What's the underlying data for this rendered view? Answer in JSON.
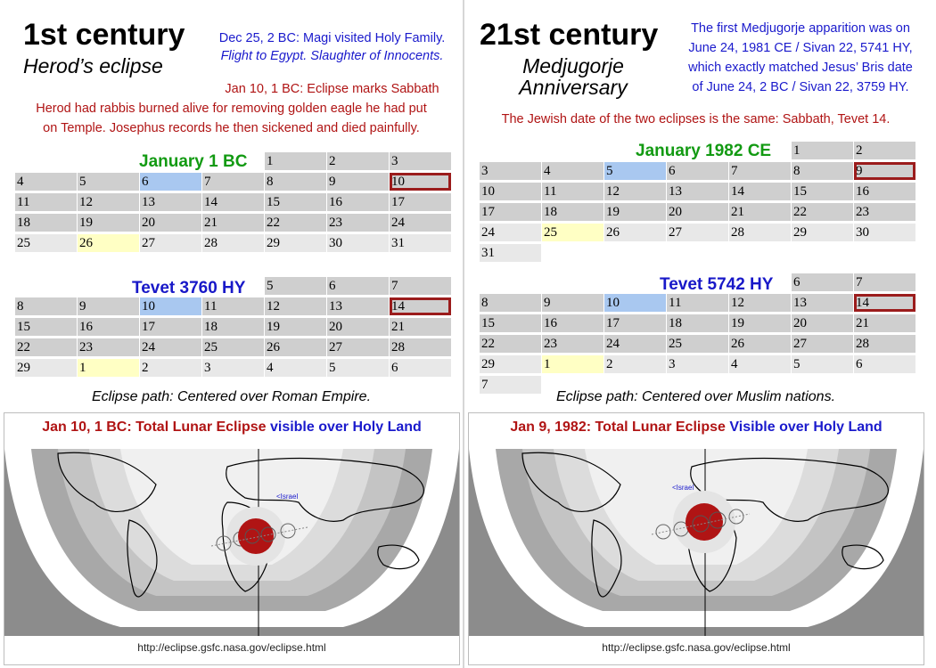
{
  "left": {
    "century": "1st century",
    "subtitle": "Herod’s eclipse",
    "note_blue_1": "Dec 25, 2 BC: Magi visited Holy Family.",
    "note_blue_2": "Flight to Egypt. Slaughter of Innocents.",
    "note_red_1": "Jan 10, 1 BC: Eclipse marks Sabbath",
    "note_red_2": "Herod had rabbis burned alive for removing golden eagle he had put",
    "note_red_3": "on Temple. Josephus records he then sickened and died painfully.",
    "cal1": {
      "title": "January 1 BC",
      "rows": [
        [
          "",
          "",
          "",
          "",
          "1",
          "2",
          "3"
        ],
        [
          "4",
          "5",
          "6",
          "7",
          "8",
          "9",
          "10"
        ],
        [
          "11",
          "12",
          "13",
          "14",
          "15",
          "16",
          "17"
        ],
        [
          "18",
          "19",
          "20",
          "21",
          "22",
          "23",
          "24"
        ],
        [
          "25",
          "26",
          "27",
          "28",
          "29",
          "30",
          "31"
        ]
      ]
    },
    "cal2": {
      "title": "Tevet 3760 HY",
      "rows": [
        [
          "",
          "",
          "",
          "",
          "5",
          "6",
          "7"
        ],
        [
          "8",
          "9",
          "10",
          "11",
          "12",
          "13",
          "14"
        ],
        [
          "15",
          "16",
          "17",
          "18",
          "19",
          "20",
          "21"
        ],
        [
          "22",
          "23",
          "24",
          "25",
          "26",
          "27",
          "28"
        ],
        [
          "29",
          "1",
          "2",
          "3",
          "4",
          "5",
          "6"
        ]
      ]
    },
    "eclipse_path": "Eclipse path: Centered over Roman Empire.",
    "map_title_red": "Jan 10, 1 BC: Total Lunar Eclipse",
    "map_title_blue": "visible over Holy Land",
    "map_label": "<Israel",
    "map_url": "http://eclipse.gsfc.nasa.gov/eclipse.html"
  },
  "right": {
    "century": "21st century",
    "subtitle_1": "Medjugorje",
    "subtitle_2": "Anniversary",
    "note_blue_1": "The first Medjugorje apparition was on",
    "note_blue_2": "June 24, 1981 CE / Sivan 22, 5741 HY,",
    "note_blue_3": "which exactly matched Jesus’ Bris date",
    "note_blue_4": "of June 24, 2 BC / Sivan 22, 3759 HY.",
    "note_red": "The Jewish date of the two eclipses is the same: Sabbath, Tevet 14.",
    "cal1": {
      "title": "January 1982 CE",
      "rows": [
        [
          "",
          "",
          "",
          "",
          "",
          "1",
          "2"
        ],
        [
          "3",
          "4",
          "5",
          "6",
          "7",
          "8",
          "9"
        ],
        [
          "10",
          "11",
          "12",
          "13",
          "14",
          "15",
          "16"
        ],
        [
          "17",
          "18",
          "19",
          "20",
          "21",
          "22",
          "23"
        ],
        [
          "24",
          "25",
          "26",
          "27",
          "28",
          "29",
          "30"
        ],
        [
          "31",
          "",
          "",
          "",
          "",
          "",
          ""
        ]
      ]
    },
    "cal2": {
      "title": "Tevet 5742 HY",
      "rows": [
        [
          "",
          "",
          "",
          "",
          "",
          "6",
          "7"
        ],
        [
          "8",
          "9",
          "10",
          "11",
          "12",
          "13",
          "14"
        ],
        [
          "15",
          "16",
          "17",
          "18",
          "19",
          "20",
          "21"
        ],
        [
          "22",
          "23",
          "24",
          "25",
          "26",
          "27",
          "28"
        ],
        [
          "29",
          "1",
          "2",
          "3",
          "4",
          "5",
          "6"
        ],
        [
          "7",
          "",
          "",
          "",
          "",
          "",
          ""
        ]
      ]
    },
    "eclipse_path": "Eclipse path: Centered over Muslim nations.",
    "map_title_red": "Jan 9, 1982: Total Lunar Eclipse",
    "map_title_blue": "Visible over Holy Land",
    "map_label": "<Israel",
    "map_url": "http://eclipse.gsfc.nasa.gov/eclipse.html"
  },
  "colors": {
    "blue_text": "#1a1acc",
    "red_text": "#b01414",
    "green_title": "#129a12",
    "highlight_border": "#9b1c1c",
    "eclipse_disc": "#b01414"
  }
}
